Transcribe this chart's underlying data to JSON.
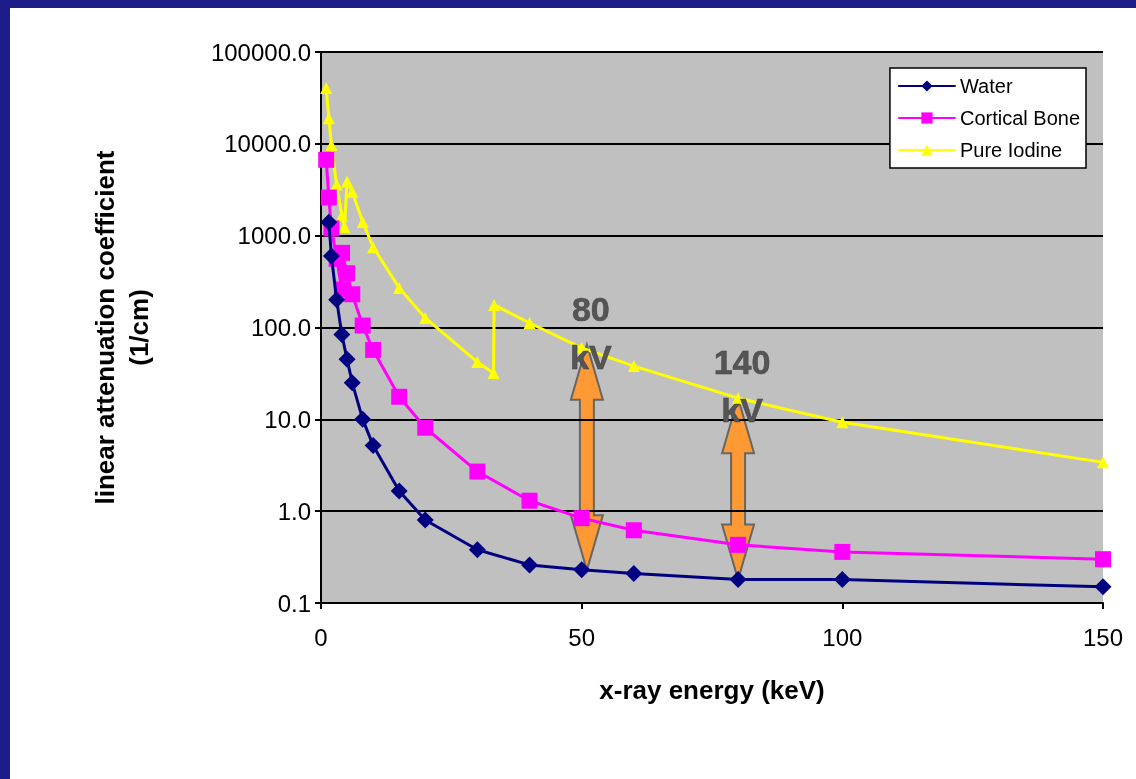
{
  "chart_data": {
    "type": "line",
    "xlabel": "x-ray energy (keV)",
    "ylabel": "linear attenuation coefficient\n(1/cm)",
    "log": "y",
    "grid": "y",
    "legend": "top right",
    "xlim": [
      0,
      150
    ],
    "xticks": [
      0,
      50,
      100,
      150
    ],
    "ylim": [
      0.1,
      100000
    ],
    "yticks": [
      {
        "value": 0.1,
        "label": "0.1"
      },
      {
        "value": 1,
        "label": "1.0"
      },
      {
        "value": 10,
        "label": "10.0"
      },
      {
        "value": 100,
        "label": "100.0"
      },
      {
        "value": 1000,
        "label": "1000.0"
      },
      {
        "value": 10000,
        "label": "10000.0"
      },
      {
        "value": 100000,
        "label": "100000.0"
      }
    ],
    "series": [
      {
        "name": "Water",
        "color": "#000080",
        "marker": "diamond",
        "x": [
          1.5,
          2,
          3,
          4,
          5,
          6,
          8,
          10,
          15,
          20,
          30,
          40,
          50,
          60,
          80,
          100,
          150
        ],
        "values": [
          1400,
          600,
          200,
          84,
          45,
          25,
          10,
          5.2,
          1.66,
          0.8,
          0.38,
          0.26,
          0.23,
          0.21,
          0.18,
          0.18,
          0.15
        ]
      },
      {
        "name": "Cortical Bone",
        "color": "#ff00ff",
        "marker": "square",
        "x": [
          1,
          1.5,
          2,
          3,
          4,
          4.04,
          5,
          6,
          8,
          10,
          15,
          20,
          30,
          40,
          50,
          60,
          80,
          100,
          150
        ],
        "values": [
          6700,
          2600,
          1200,
          560,
          260,
          650,
          390,
          230,
          105,
          57,
          17.6,
          8.1,
          2.7,
          1.3,
          0.84,
          0.62,
          0.43,
          0.36,
          0.3
        ]
      },
      {
        "name": "Pure Iodine",
        "color": "#ffff00",
        "marker": "triangle",
        "x": [
          1,
          1.5,
          2,
          3,
          4,
          4.5,
          5,
          6,
          8,
          10,
          15,
          20,
          30,
          33.1,
          33.2,
          40,
          50,
          60,
          80,
          100,
          150
        ],
        "values": [
          40500,
          19000,
          9700,
          3600,
          1660,
          1240,
          3900,
          3000,
          1410,
          750,
          270,
          127,
          42,
          32,
          176,
          112,
          60,
          38,
          17,
          9.3,
          3.4
        ]
      }
    ],
    "annotations": [
      {
        "text": "80\nkV",
        "x": 51,
        "y": 65
      },
      {
        "text": "140\nkV",
        "x": 80,
        "y": 17
      }
    ]
  }
}
